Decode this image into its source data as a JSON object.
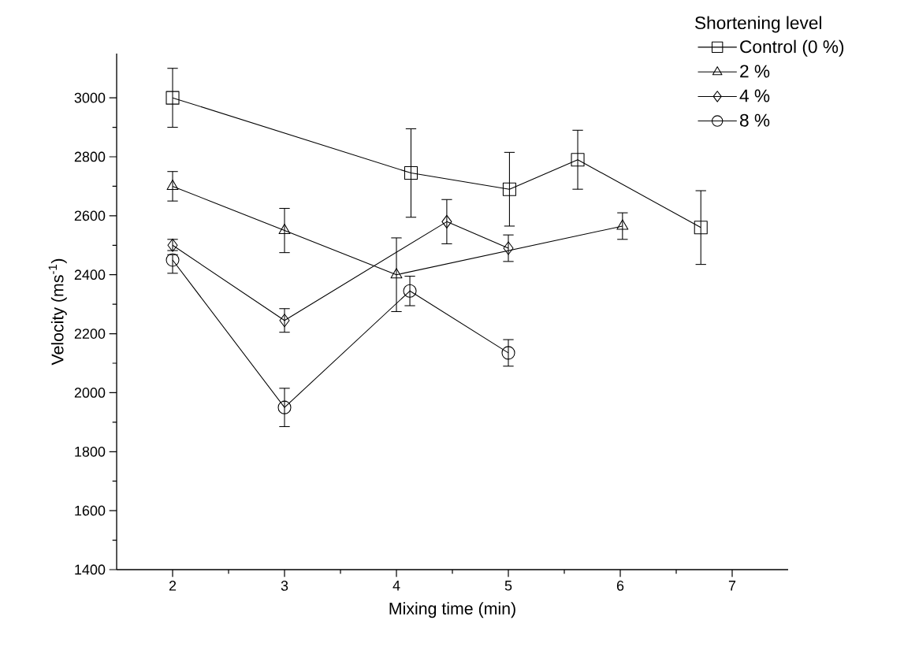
{
  "chart_data": {
    "type": "line",
    "xlabel": "Mixing time (min)",
    "ylabel": "Velocity (ms$^{-1}$)",
    "legend_title": "Shortening level",
    "legend": "top right",
    "line_style": "solid",
    "xlim": [
      1.5,
      7.5
    ],
    "xticks": [
      2,
      3,
      4,
      5,
      6,
      7
    ],
    "ylim": [
      1400,
      3150
    ],
    "yticks": [
      1400,
      1600,
      1800,
      2000,
      2200,
      2400,
      2600,
      2800,
      3000
    ],
    "series": [
      {
        "name": "Control (0 %)",
        "color": "#000000",
        "marker": "square",
        "x": [
          2,
          4.13,
          5.01,
          5.62,
          6.72
        ],
        "values": [
          3000,
          2745,
          2690,
          2790,
          2560
        ],
        "errors": [
          100,
          150,
          125,
          100,
          125
        ]
      },
      {
        "name": "2 %",
        "color": "#000000",
        "marker": "triangle",
        "x": [
          2,
          3,
          4,
          6.02
        ],
        "values": [
          2700,
          2550,
          2400,
          2565
        ],
        "errors": [
          50,
          75,
          125,
          45
        ]
      },
      {
        "name": "4 %",
        "color": "#000000",
        "marker": "diamond",
        "x": [
          2,
          3,
          4.45,
          5
        ],
        "values": [
          2500,
          2245,
          2580,
          2490
        ],
        "errors": [
          [
            2482,
            2520
          ],
          40,
          75,
          45
        ]
      },
      {
        "name": "8 %",
        "color": "#000000",
        "marker": "circle",
        "x": [
          2,
          3,
          4.12,
          5
        ],
        "values": [
          2450,
          1950,
          2345,
          2135
        ],
        "errors": [
          [
            2405,
            2468
          ],
          65,
          50,
          45
        ]
      }
    ]
  }
}
